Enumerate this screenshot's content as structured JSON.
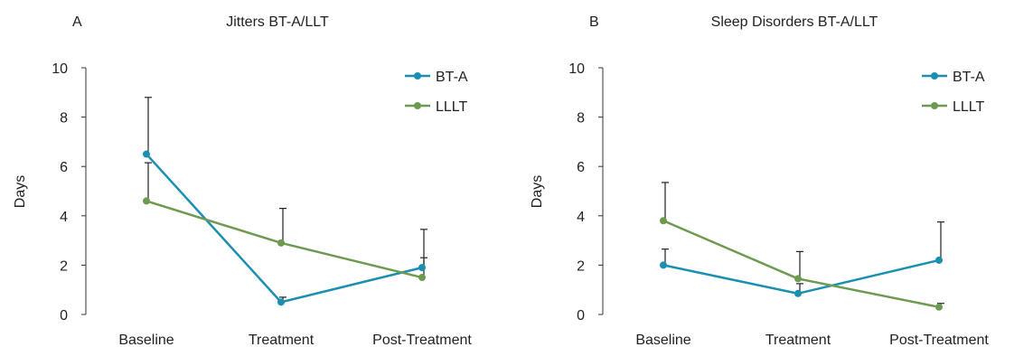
{
  "chart_data": [
    {
      "type": "line",
      "panel_label": "A",
      "title": "Jitters BT-A/LLT",
      "ylabel": "Days",
      "xlabel": "",
      "ylim": [
        0,
        10
      ],
      "yticks": [
        0,
        2,
        4,
        6,
        8,
        10
      ],
      "categories": [
        "Baseline",
        "Treatment",
        "Post-Treatment"
      ],
      "legend_position": "top-right",
      "series": [
        {
          "name": "BT-A",
          "color": "#1a8fb0",
          "values": [
            6.5,
            0.5,
            1.9
          ],
          "error_upper": [
            2.3,
            0.2,
            0.4
          ]
        },
        {
          "name": "LLLT",
          "color": "#6e9a50",
          "values": [
            4.6,
            2.9,
            1.5
          ],
          "error_upper": [
            1.55,
            1.4,
            1.95
          ]
        }
      ]
    },
    {
      "type": "line",
      "panel_label": "B",
      "title": "Sleep Disorders BT-A/LLT",
      "ylabel": "Days",
      "xlabel": "",
      "ylim": [
        0,
        10
      ],
      "yticks": [
        0,
        2,
        4,
        6,
        8,
        10
      ],
      "categories": [
        "Baseline",
        "Treatment",
        "Post-Treatment"
      ],
      "legend_position": "top-right",
      "series": [
        {
          "name": "BT-A",
          "color": "#1a8fb0",
          "values": [
            2.0,
            0.85,
            2.2
          ],
          "error_upper": [
            0.65,
            0.4,
            1.55
          ]
        },
        {
          "name": "LLLT",
          "color": "#6e9a50",
          "values": [
            3.8,
            1.45,
            0.3
          ],
          "error_upper": [
            1.55,
            1.1,
            0.15
          ]
        }
      ]
    }
  ]
}
